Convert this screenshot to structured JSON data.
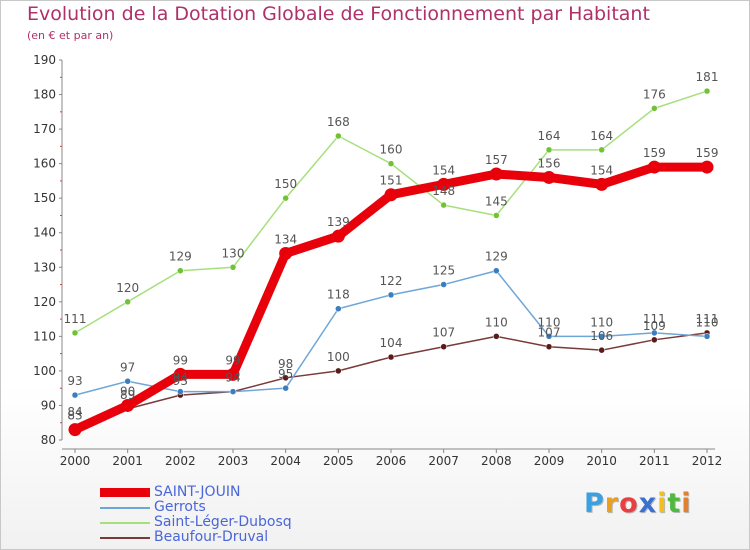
{
  "header": {
    "title": "Evolution de la Dotation Globale de Fonctionnement par Habitant",
    "subtitle": "(en € et par an)"
  },
  "colors": {
    "title": "#b0306a",
    "axis": "#888888",
    "tick_label": "#333333",
    "value_label": "#555555",
    "legend_text": "#4a66d8"
  },
  "chart_data": {
    "type": "line",
    "title": "Evolution de la Dotation Globale de Fonctionnement par Habitant",
    "subtitle": "(en € et par an)",
    "xlabel": "",
    "ylabel": "",
    "x": [
      "2000",
      "2001",
      "2002",
      "2003",
      "2004",
      "2005",
      "2006",
      "2007",
      "2008",
      "2009",
      "2010",
      "2011",
      "2012"
    ],
    "ylim": [
      80,
      190
    ],
    "yticks": [
      80,
      90,
      100,
      110,
      120,
      130,
      140,
      150,
      160,
      170,
      180,
      190
    ],
    "grid": false,
    "legend_position": "bottom-left",
    "series": [
      {
        "name": "SAINT-JOUIN",
        "color": "#e8000b",
        "point_color": "#e8000b",
        "values": [
          83,
          90,
          99,
          99,
          134,
          139,
          151,
          154,
          157,
          156,
          154,
          159,
          159
        ]
      },
      {
        "name": "Gerrots",
        "color": "#6ea6d8",
        "point_color": "#3a7ec0",
        "values": [
          93,
          97,
          94,
          94,
          95,
          118,
          122,
          125,
          129,
          110,
          110,
          111,
          110
        ]
      },
      {
        "name": "Saint-Léger-Dubosq",
        "color": "#a6e07c",
        "point_color": "#72c236",
        "values": [
          111,
          120,
          129,
          130,
          150,
          168,
          160,
          148,
          145,
          164,
          164,
          176,
          181
        ]
      },
      {
        "name": "Beaufour-Druval",
        "color": "#7a3a3a",
        "point_color": "#5a1a1a",
        "values": [
          84,
          89,
          93,
          94,
          98,
          100,
          104,
          107,
          110,
          107,
          106,
          109,
          111
        ]
      }
    ]
  },
  "logo": {
    "text": "Proxiti",
    "letters": [
      {
        "ch": "P",
        "color": "#3aa0e0"
      },
      {
        "ch": "r",
        "color": "#e8a020"
      },
      {
        "ch": "o",
        "color": "#e84040"
      },
      {
        "ch": "x",
        "color": "#3a70d0"
      },
      {
        "ch": "i",
        "color": "#f0c020"
      },
      {
        "ch": "t",
        "color": "#50b840"
      },
      {
        "ch": "i",
        "color": "#e08030"
      }
    ]
  }
}
